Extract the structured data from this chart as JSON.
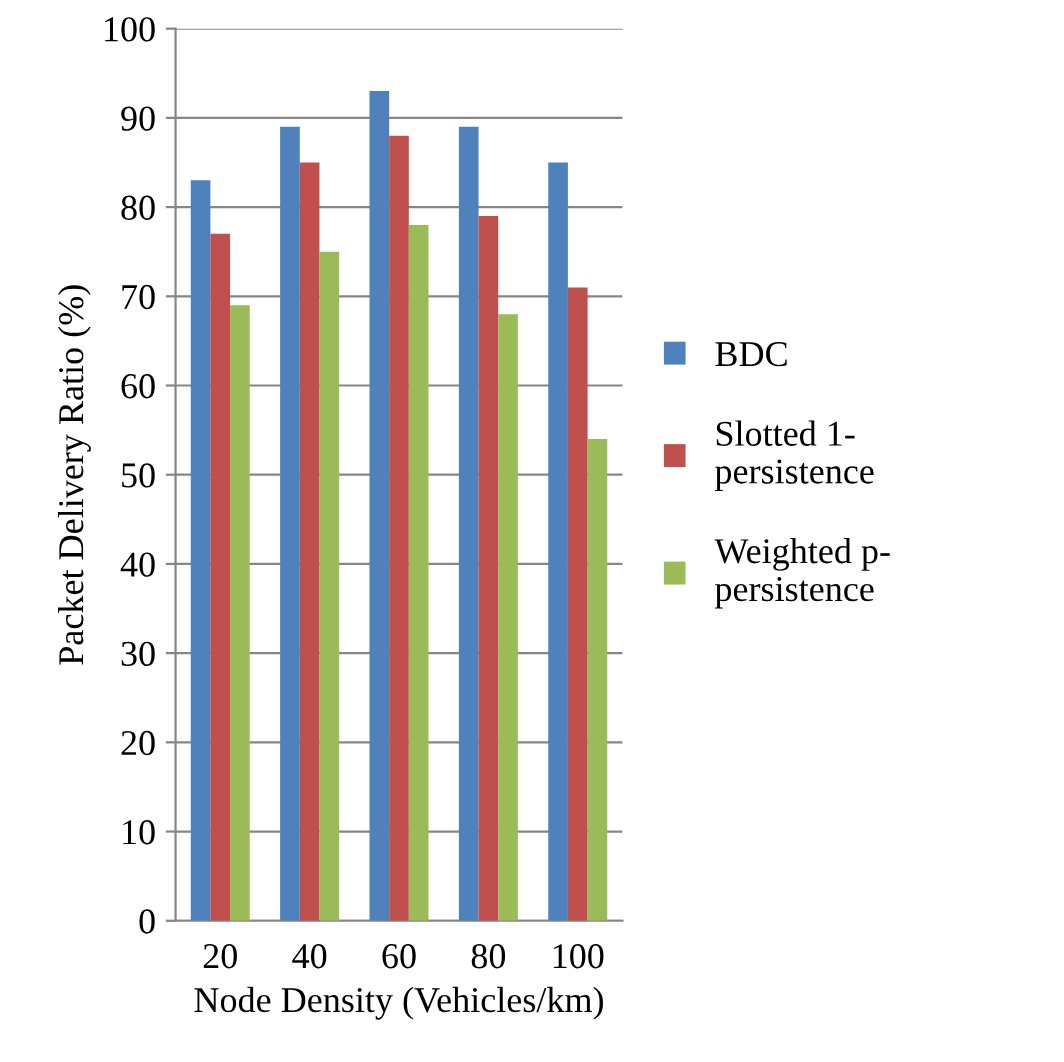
{
  "chart_data": {
    "type": "bar",
    "xlabel": "Node Density (Vehicles/km)",
    "ylabel": "Packet Delivery Ratio (%)",
    "categories": [
      "20",
      "40",
      "60",
      "80",
      "100"
    ],
    "series": [
      {
        "name": "BDC",
        "color": "#4f81bd",
        "values": [
          83,
          89,
          93,
          89,
          85
        ]
      },
      {
        "name": "Slotted 1-\npersistence",
        "color": "#c0504d",
        "values": [
          77,
          85,
          88,
          79,
          71
        ]
      },
      {
        "name": "Weighted p-\npersistence",
        "color": "#9bbb59",
        "values": [
          69,
          75,
          78,
          68,
          54
        ]
      }
    ],
    "ylim": [
      0,
      100
    ],
    "yticks": [
      0,
      10,
      20,
      30,
      40,
      50,
      60,
      70,
      80,
      90,
      100
    ],
    "grid": "y",
    "legend": "right"
  }
}
